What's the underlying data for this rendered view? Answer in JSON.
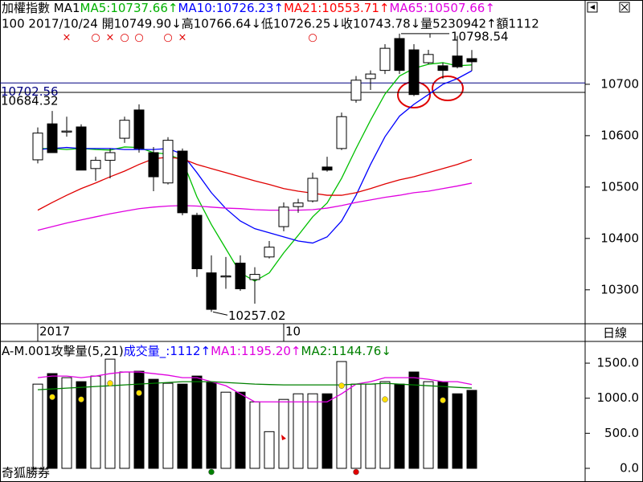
{
  "chart_data": [
    {
      "type": "candlestick",
      "header": [
        {
          "text": "加權指數 MA1",
          "color": "#000000"
        },
        {
          "text": "MA5:10737.66↑",
          "color": "#00b000"
        },
        {
          "text": "MA10:10726.23↑",
          "color": "#0000ff"
        },
        {
          "text": "MA21:10553.71↑",
          "color": "#ff0000"
        },
        {
          "text": "MA65:10507.66↑",
          "color": "#e000e0"
        }
      ],
      "info_line": "100 2017/10/24 開10749.90↓高10766.64↓低10726.25↓收10743.78↓量5230942↑額1112",
      "categories": [
        "2017",
        null,
        null,
        null,
        null,
        null,
        null,
        null,
        null,
        null,
        null,
        null,
        null,
        null,
        null,
        null,
        null,
        "10",
        null,
        null,
        null,
        null,
        null,
        null,
        null,
        null,
        null,
        null,
        null,
        null,
        null
      ],
      "open": [
        10553,
        10623,
        10607,
        10617,
        10536,
        10552,
        10595,
        10650,
        10567,
        10508,
        10570,
        10445,
        10333,
        10325,
        10352,
        10320,
        10364,
        10423,
        10462,
        10473,
        10539,
        10575,
        10669,
        10711,
        10727,
        10789,
        10767,
        10742,
        10736,
        10755,
        10749.9
      ],
      "high": [
        10616,
        10648,
        10637,
        10622,
        10559,
        10575,
        10637,
        10661,
        10578,
        10597,
        10575,
        10450,
        10367,
        10364,
        10367,
        10344,
        10395,
        10470,
        10477,
        10528,
        10559,
        10645,
        10716,
        10727,
        10778,
        10798.54,
        10778,
        10767,
        10742,
        10794,
        10766.64
      ],
      "low": [
        10546,
        10567,
        10598,
        10533,
        10512,
        10517,
        10586,
        10567,
        10492,
        10505,
        10445,
        10325,
        10257.02,
        10302,
        10298,
        10273,
        10361,
        10414,
        10450,
        10470,
        10530,
        10572,
        10664,
        10689,
        10720,
        10720,
        10677,
        10739,
        10711,
        10731,
        10726.25
      ],
      "close": [
        10605,
        10567,
        10609,
        10533,
        10552,
        10567,
        10630,
        10575,
        10520,
        10591,
        10450,
        10341,
        10262,
        10327,
        10302,
        10330,
        10383,
        10461,
        10469,
        10517,
        10533,
        10637,
        10708,
        10720,
        10770,
        10727,
        10680,
        10758,
        10727,
        10734,
        10743.78
      ],
      "series": [
        {
          "name": "MA5",
          "color": "#00c000",
          "values": [
            10575,
            10575,
            10573,
            10575,
            10573,
            10572,
            10578,
            10577,
            10567,
            10564,
            10552,
            10481,
            10427,
            10380,
            10333,
            10317,
            10333,
            10372,
            10406,
            10442,
            10469,
            10517,
            10575,
            10630,
            10681,
            10716,
            10731,
            10739,
            10742,
            10736,
            10737.66
          ]
        },
        {
          "name": "MA10",
          "color": "#0000ff",
          "values": [
            10573,
            10575,
            10577,
            10575,
            10575,
            10575,
            10573,
            10573,
            10573,
            10575,
            10564,
            10528,
            10489,
            10458,
            10434,
            10419,
            10411,
            10403,
            10395,
            10391,
            10403,
            10434,
            10484,
            10544,
            10598,
            10638,
            10661,
            10680,
            10700,
            10711,
            10726.23
          ]
        },
        {
          "name": "MA21",
          "color": "#e00000",
          "values": [
            10455,
            10470,
            10484,
            10497,
            10508,
            10520,
            10531,
            10544,
            10555,
            10558,
            10555,
            10544,
            10536,
            10528,
            10520,
            10512,
            10505,
            10497,
            10492,
            10488,
            10484,
            10484,
            10489,
            10497,
            10506,
            10514,
            10520,
            10528,
            10536,
            10544,
            10553.71
          ]
        },
        {
          "name": "MA65",
          "color": "#e000e0",
          "values": [
            10416,
            10423,
            10430,
            10436,
            10442,
            10448,
            10453,
            10458,
            10461,
            10463,
            10464,
            10463,
            10461,
            10459,
            10458,
            10456,
            10455,
            10455,
            10455,
            10456,
            10459,
            10464,
            10470,
            10475,
            10480,
            10484,
            10489,
            10492,
            10497,
            10502,
            10507.66
          ]
        }
      ],
      "hlines": [
        {
          "value": 10702.56,
          "color": "#000080"
        },
        {
          "value": 10684.32,
          "color": "#000000"
        }
      ],
      "signals": [
        null,
        null,
        "×",
        null,
        "○",
        "×",
        "○",
        "○",
        null,
        "○",
        "×",
        null,
        null,
        null,
        null,
        null,
        null,
        null,
        null,
        "○",
        null,
        null,
        null,
        null,
        null,
        null,
        null,
        null,
        null,
        null,
        null
      ],
      "ylim": [
        10234,
        10864
      ],
      "yticks": [
        10300,
        10400,
        10500,
        10600,
        10700
      ],
      "period_label": "日線"
    },
    {
      "type": "volume",
      "header": [
        {
          "text": "A-M.001攻擊量(5,21)",
          "color": "#000000"
        },
        {
          "text": "成交量_:1112↑",
          "color": "#0000ff"
        },
        {
          "text": "MA1:1195.20↑",
          "color": "#e000e0"
        },
        {
          "text": "MA2:1144.76↓",
          "color": "#008000"
        }
      ],
      "values": [
        1201,
        1351,
        1293,
        1236,
        1316,
        1557,
        1374,
        1385,
        1270,
        1213,
        1201,
        1316,
        1224,
        1086,
        1086,
        948,
        523,
        983,
        1063,
        1063,
        1063,
        1523,
        1201,
        1201,
        1236,
        1201,
        1374,
        1236,
        1236,
        1063,
        1112
      ],
      "series": [
        {
          "name": "MA1",
          "color": "#e000e0",
          "values": [
            1293,
            1316,
            1316,
            1293,
            1316,
            1351,
            1374,
            1374,
            1351,
            1328,
            1293,
            1293,
            1236,
            1178,
            1063,
            948,
            948,
            948,
            948,
            948,
            948,
            1063,
            1201,
            1236,
            1293,
            1293,
            1293,
            1270,
            1236,
            1236,
            1195.2
          ]
        },
        {
          "name": "MA2",
          "color": "#008000",
          "values": [
            1121,
            1132,
            1144,
            1155,
            1167,
            1178,
            1190,
            1201,
            1213,
            1224,
            1236,
            1236,
            1236,
            1224,
            1213,
            1201,
            1195,
            1190,
            1190,
            1190,
            1190,
            1190,
            1201,
            1201,
            1213,
            1201,
            1190,
            1178,
            1167,
            1155,
            1144.76
          ]
        }
      ],
      "dots": [
        null,
        {
          "value": 1017,
          "color": "#ffe000"
        },
        null,
        {
          "value": 983,
          "color": "#ffe000"
        },
        null,
        {
          "value": 1213,
          "color": "#ffe000"
        },
        null,
        {
          "value": 1075,
          "color": "#ffe000"
        },
        null,
        null,
        null,
        null,
        {
          "value": -52,
          "color": "#008000"
        },
        null,
        null,
        null,
        null,
        null,
        null,
        null,
        null,
        {
          "value": 1178,
          "color": "#ffe000"
        },
        {
          "value": -52,
          "color": "#e00000"
        },
        null,
        {
          "value": 983,
          "color": "#ffe000"
        },
        null,
        null,
        null,
        {
          "value": 971,
          "color": "#ffe000"
        },
        null,
        null
      ],
      "ylim": [
        -172,
        1810
      ],
      "yticks": [
        {
          "value": 1500,
          "label": "1500.0"
        },
        {
          "value": 1000,
          "label": "1000.0"
        },
        {
          "value": 500,
          "label": "500.0"
        },
        {
          "value": 0,
          "label": "0.0"
        }
      ],
      "brand": "奇狐勝券"
    }
  ]
}
